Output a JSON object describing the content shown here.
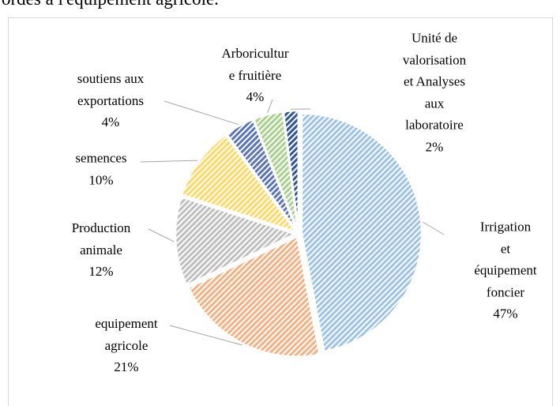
{
  "caption": "ordés à l'équipement agricole.",
  "chart_data": {
    "type": "pie",
    "categories": [
      "Irrigation et\néquipement\nfoncier",
      "equipement\nagricole",
      "Production\nanimale",
      "semences",
      "soutiens aux\nexportations",
      "Arboricultur\ne fruitière",
      "Unité de\nvalorisation\net Analyses\naux\nlaboratoire"
    ],
    "values": [
      47,
      21,
      12,
      10,
      4,
      4,
      2
    ],
    "value_labels": [
      "47%",
      "21%",
      "12%",
      "10%",
      "4%",
      "4%",
      "2%"
    ],
    "colors": [
      "#9dc3e6",
      "#f4b183",
      "#bfbfbf",
      "#ffd966",
      "#5b74b8",
      "#a9d18e",
      "#2f5597"
    ]
  }
}
